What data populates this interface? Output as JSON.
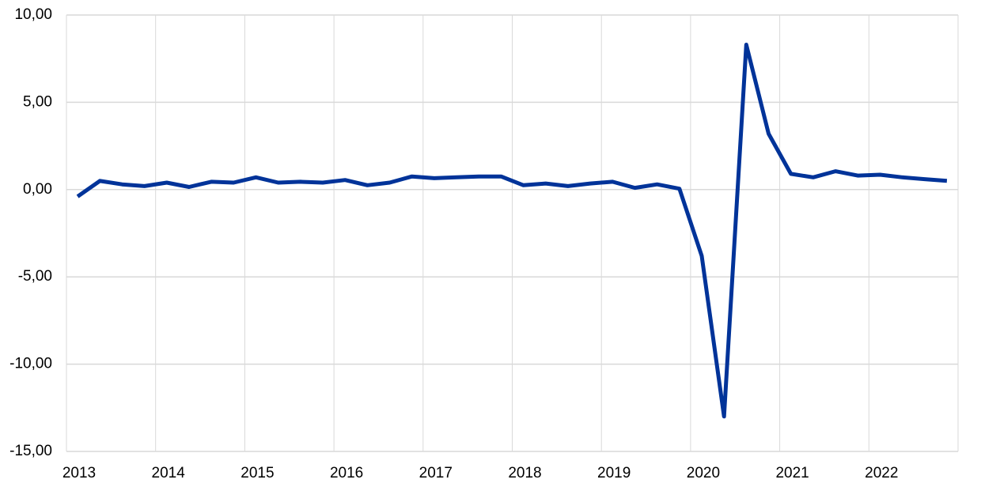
{
  "chart_data": {
    "type": "line",
    "categories": [
      "2013",
      null,
      null,
      null,
      "2014",
      null,
      null,
      null,
      "2015",
      null,
      null,
      null,
      "2016",
      null,
      null,
      null,
      "2017",
      null,
      null,
      null,
      "2018",
      null,
      null,
      null,
      "2019",
      null,
      null,
      null,
      "2020",
      null,
      null,
      null,
      "2021",
      null,
      null,
      null,
      "2022",
      null,
      null,
      null
    ],
    "series": [
      {
        "color": "#003399",
        "values": [
          -0.4,
          0.5,
          0.3,
          0.2,
          0.4,
          0.15,
          0.45,
          0.4,
          0.7,
          0.4,
          0.45,
          0.4,
          0.55,
          0.25,
          0.4,
          0.75,
          0.65,
          0.7,
          0.75,
          0.75,
          0.25,
          0.35,
          0.2,
          0.35,
          0.45,
          0.1,
          0.3,
          0.05,
          -3.8,
          -13.0,
          8.3,
          3.2,
          0.9,
          0.7,
          1.05,
          0.8,
          0.85,
          0.7,
          0.6,
          0.5
        ]
      }
    ],
    "ylim": [
      -15,
      10
    ],
    "yticks": [
      {
        "value": -15,
        "label": "-15,00"
      },
      {
        "value": -10,
        "label": "-10,00"
      },
      {
        "value": -5,
        "label": "-5,00"
      },
      {
        "value": 0,
        "label": "0,00"
      },
      {
        "value": 5,
        "label": "5,00"
      },
      {
        "value": 10,
        "label": "10,00"
      }
    ],
    "grid": true
  }
}
